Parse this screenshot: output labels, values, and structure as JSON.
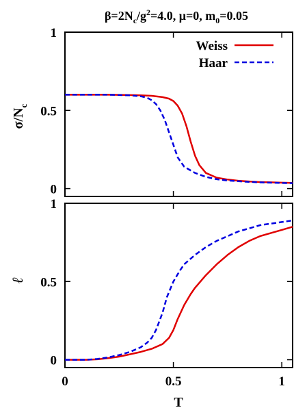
{
  "chart_data": [
    {
      "type": "line",
      "title": "β=2N_c/g²=4.0, μ=0, m_0=0.05",
      "title_parts": {
        "a": "β=2N",
        "b": "c",
        "c": "/g",
        "d": "2",
        "e": "=4.0, μ=0, m",
        "f": "0",
        "g": "=0.05"
      },
      "ylabel": "σ/N_c",
      "ylabel_parts": {
        "main": "σ/N",
        "sub": "c"
      },
      "xlim": [
        0,
        1.05
      ],
      "ylim": [
        -0.05,
        1.0
      ],
      "yticks": [
        "0",
        "0.5",
        "1"
      ],
      "ytick_values": [
        0,
        0.5,
        1
      ],
      "legend_position": "top-right",
      "series": [
        {
          "name": "Weiss",
          "color": "#e00000",
          "dash": "solid",
          "x": [
            0,
            0.1,
            0.2,
            0.3,
            0.35,
            0.4,
            0.45,
            0.48,
            0.5,
            0.52,
            0.54,
            0.56,
            0.58,
            0.6,
            0.62,
            0.65,
            0.7,
            0.75,
            0.8,
            0.85,
            0.9,
            0.95,
            1.0,
            1.05
          ],
          "y": [
            0.6,
            0.6,
            0.6,
            0.598,
            0.596,
            0.593,
            0.585,
            0.575,
            0.56,
            0.53,
            0.48,
            0.4,
            0.3,
            0.21,
            0.15,
            0.1,
            0.07,
            0.058,
            0.05,
            0.046,
            0.042,
            0.04,
            0.038,
            0.036
          ]
        },
        {
          "name": "Haar",
          "color": "#0000e0",
          "dash": "dashed",
          "x": [
            0,
            0.1,
            0.2,
            0.3,
            0.35,
            0.38,
            0.4,
            0.42,
            0.44,
            0.46,
            0.48,
            0.5,
            0.52,
            0.55,
            0.6,
            0.65,
            0.7,
            0.75,
            0.8,
            0.85,
            0.9,
            0.95,
            1.0,
            1.05
          ],
          "y": [
            0.6,
            0.6,
            0.6,
            0.596,
            0.59,
            0.58,
            0.565,
            0.54,
            0.5,
            0.44,
            0.36,
            0.28,
            0.2,
            0.14,
            0.1,
            0.075,
            0.06,
            0.052,
            0.047,
            0.043,
            0.04,
            0.038,
            0.036,
            0.035
          ]
        }
      ]
    },
    {
      "type": "line",
      "xlabel": "T",
      "ylabel": "ℓ",
      "xlim": [
        0,
        1.05
      ],
      "ylim": [
        -0.05,
        1.0
      ],
      "xticks": [
        "0",
        "0.5",
        "1"
      ],
      "xtick_values": [
        0,
        0.5,
        1
      ],
      "yticks": [
        "0",
        "0.5",
        "1"
      ],
      "ytick_values": [
        0,
        0.5,
        1
      ],
      "series": [
        {
          "name": "Weiss",
          "color": "#e00000",
          "dash": "solid",
          "x": [
            0,
            0.1,
            0.15,
            0.2,
            0.25,
            0.3,
            0.35,
            0.4,
            0.45,
            0.48,
            0.5,
            0.52,
            0.55,
            0.58,
            0.6,
            0.65,
            0.7,
            0.75,
            0.8,
            0.85,
            0.9,
            0.95,
            1.0,
            1.05
          ],
          "y": [
            0.0,
            0.0,
            0.003,
            0.01,
            0.02,
            0.035,
            0.05,
            0.07,
            0.1,
            0.14,
            0.19,
            0.26,
            0.35,
            0.42,
            0.46,
            0.54,
            0.61,
            0.67,
            0.72,
            0.76,
            0.79,
            0.81,
            0.83,
            0.85
          ]
        },
        {
          "name": "Haar",
          "color": "#0000e0",
          "dash": "dashed",
          "x": [
            0,
            0.1,
            0.15,
            0.2,
            0.25,
            0.3,
            0.35,
            0.38,
            0.4,
            0.42,
            0.45,
            0.47,
            0.5,
            0.53,
            0.55,
            0.6,
            0.65,
            0.7,
            0.75,
            0.8,
            0.85,
            0.9,
            0.95,
            1.0,
            1.05
          ],
          "y": [
            0.0,
            0.0,
            0.005,
            0.015,
            0.03,
            0.05,
            0.08,
            0.11,
            0.14,
            0.19,
            0.3,
            0.4,
            0.5,
            0.57,
            0.61,
            0.67,
            0.72,
            0.76,
            0.79,
            0.82,
            0.84,
            0.86,
            0.87,
            0.88,
            0.89
          ]
        }
      ]
    }
  ]
}
